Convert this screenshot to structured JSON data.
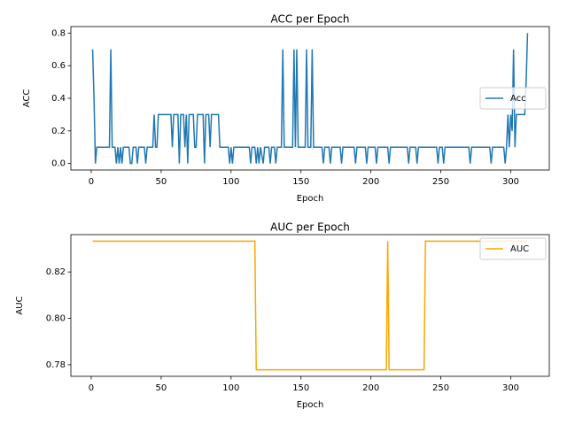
{
  "chart_data": [
    {
      "type": "line",
      "title": "ACC per Epoch",
      "xlabel": "Epoch",
      "ylabel": "ACC",
      "x": [
        1,
        2,
        3,
        4,
        13,
        14,
        15,
        17,
        18,
        19,
        20,
        21,
        22,
        23,
        27,
        28,
        29,
        30,
        32,
        33,
        34,
        38,
        39,
        40,
        44,
        45,
        46,
        47,
        48,
        57,
        58,
        59,
        62,
        63,
        64,
        66,
        67,
        68,
        69,
        70,
        73,
        74,
        75,
        76,
        80,
        81,
        82,
        84,
        85,
        86,
        91,
        92,
        98,
        99,
        100,
        101,
        102,
        113,
        114,
        115,
        117,
        118,
        119,
        120,
        121,
        123,
        124,
        127,
        128,
        129,
        131,
        132,
        133,
        136,
        137,
        138,
        144,
        145,
        146,
        147,
        148,
        153,
        154,
        155,
        157,
        158,
        159,
        165,
        166,
        167,
        170,
        171,
        172,
        178,
        179,
        180,
        188,
        189,
        190,
        196,
        197,
        198,
        203,
        204,
        205,
        212,
        213,
        214,
        226,
        227,
        228,
        232,
        233,
        234,
        247,
        248,
        249,
        251,
        252,
        253,
        270,
        271,
        272,
        285,
        286,
        287,
        295,
        296,
        297,
        298,
        299,
        300,
        301,
        302,
        303,
        304,
        305,
        310,
        311,
        312
      ],
      "series": [
        {
          "name": "Acc",
          "color": "#1f77b4",
          "values": [
            0.7,
            0.4,
            0.0,
            0.1,
            0.1,
            0.7,
            0.1,
            0.1,
            0.0,
            0.1,
            0.0,
            0.1,
            0.0,
            0.1,
            0.1,
            0.0,
            0.0,
            0.1,
            0.1,
            0.0,
            0.1,
            0.1,
            0.0,
            0.1,
            0.1,
            0.3,
            0.1,
            0.1,
            0.3,
            0.3,
            0.1,
            0.3,
            0.3,
            0.0,
            0.3,
            0.3,
            0.1,
            0.3,
            0.0,
            0.3,
            0.3,
            0.1,
            0.1,
            0.3,
            0.3,
            0.0,
            0.3,
            0.3,
            0.1,
            0.3,
            0.3,
            0.1,
            0.1,
            0.0,
            0.1,
            0.0,
            0.1,
            0.1,
            0.0,
            0.1,
            0.1,
            0.0,
            0.1,
            0.0,
            0.1,
            0.0,
            0.1,
            0.1,
            0.0,
            0.1,
            0.1,
            0.0,
            0.1,
            0.1,
            0.7,
            0.1,
            0.1,
            0.7,
            0.1,
            0.7,
            0.1,
            0.1,
            0.7,
            0.1,
            0.1,
            0.7,
            0.1,
            0.1,
            0.0,
            0.1,
            0.1,
            0.0,
            0.1,
            0.1,
            0.0,
            0.1,
            0.1,
            0.0,
            0.1,
            0.1,
            0.0,
            0.1,
            0.1,
            0.0,
            0.1,
            0.1,
            0.0,
            0.1,
            0.1,
            0.0,
            0.1,
            0.1,
            0.0,
            0.1,
            0.1,
            0.0,
            0.1,
            0.1,
            0.0,
            0.1,
            0.1,
            0.0,
            0.1,
            0.1,
            0.0,
            0.1,
            0.1,
            0.0,
            0.1,
            0.3,
            0.1,
            0.3,
            0.2,
            0.7,
            0.1,
            0.3,
            0.3,
            0.3,
            0.5,
            0.8
          ]
        }
      ],
      "xlim": [
        -14.55,
        327.55
      ],
      "xticks": [
        0,
        50,
        100,
        150,
        200,
        250,
        300
      ],
      "ylim": [
        -0.04,
        0.84
      ],
      "yticks": [
        {
          "value": 0,
          "label": "0.0"
        },
        {
          "value": 0.2,
          "label": "0.2"
        },
        {
          "value": 0.4,
          "label": "0.4"
        },
        {
          "value": 0.6,
          "label": "0.6"
        },
        {
          "value": 0.8,
          "label": "0.8"
        }
      ],
      "legend": "center right"
    },
    {
      "type": "line",
      "title": "AUC per Epoch",
      "xlabel": "Epoch",
      "ylabel": "AUC",
      "x": [
        1,
        117,
        118,
        211,
        212,
        213,
        238,
        239,
        312
      ],
      "series": [
        {
          "name": "AUC",
          "color": "#ffa500",
          "values": [
            0.8333,
            0.8333,
            0.7778,
            0.7778,
            0.8333,
            0.7778,
            0.7778,
            0.8333,
            0.8333
          ]
        }
      ],
      "xlim": [
        -14.55,
        327.55
      ],
      "xticks": [
        0,
        50,
        100,
        150,
        200,
        250,
        300
      ],
      "ylim": [
        0.775,
        0.8361
      ],
      "yticks": [
        {
          "value": 0.78,
          "label": "0.78"
        },
        {
          "value": 0.8,
          "label": "0.80"
        },
        {
          "value": 0.82,
          "label": "0.82"
        }
      ],
      "legend": "upper right"
    }
  ]
}
